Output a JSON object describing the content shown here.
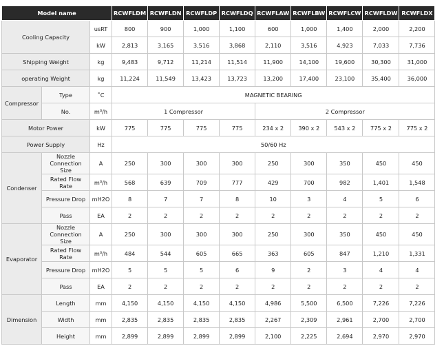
{
  "header": {
    "label": "Model name",
    "models": [
      "RCWFLDM",
      "RCWFLDN",
      "RCWFLDP",
      "RCWFLDQ",
      "RCWFLAW",
      "RCWFLBW",
      "RCWFLCW",
      "RCWFLDW",
      "RCWFLDX"
    ]
  },
  "cooling": {
    "label": "Cooling Capacity",
    "usrt_unit": "usRT",
    "usrt": [
      "800",
      "900",
      "1,000",
      "1,100",
      "600",
      "1,000",
      "1,400",
      "2,000",
      "2,200"
    ],
    "kw_unit": "kW",
    "kw": [
      "2,813",
      "3,165",
      "3,516",
      "3,868",
      "2,110",
      "3,516",
      "4,923",
      "7,033",
      "7,736"
    ]
  },
  "shipping": {
    "label": "Shipping Weight",
    "unit": "kg",
    "values": [
      "9,483",
      "9,712",
      "11,214",
      "11,514",
      "11,900",
      "14,100",
      "19,600",
      "30,300",
      "31,000"
    ]
  },
  "operating": {
    "label": "operating Weight",
    "unit": "kg",
    "values": [
      "11,224",
      "11,549",
      "13,423",
      "13,723",
      "13,200",
      "17,400",
      "23,100",
      "35,400",
      "36,000"
    ]
  },
  "compressor": {
    "label": "Compressor",
    "type_label": "Type",
    "type_unit": "˚C",
    "type_value": "MAGNETIC BEARING",
    "no_label": "No.",
    "no_unit": "m³/h",
    "no_value_1": "1 Compressor",
    "no_value_2": "2 Compressor"
  },
  "motor": {
    "label": "Motor Power",
    "unit": "kW",
    "values": [
      "775",
      "775",
      "775",
      "775",
      "234 x 2",
      "390 x 2",
      "543 x 2",
      "775 x 2",
      "775 x 2"
    ]
  },
  "power": {
    "label": "Power Supply",
    "unit": "Hz",
    "value": "50/60 Hz"
  },
  "condenser": {
    "label": "Condenser",
    "nozzle_label": "Nozzle Connection Size",
    "nozzle_unit": "A",
    "nozzle": [
      "250",
      "300",
      "300",
      "300",
      "250",
      "300",
      "350",
      "450",
      "450"
    ],
    "flow_label": "Rated Flow Rate",
    "flow_unit": "m³/h",
    "flow": [
      "568",
      "639",
      "709",
      "777",
      "429",
      "700",
      "982",
      "1,401",
      "1,548"
    ],
    "pd_label": "Pressure Drop",
    "pd_unit": "mH2O",
    "pd": [
      "8",
      "7",
      "7",
      "8",
      "10",
      "3",
      "4",
      "5",
      "6"
    ],
    "pass_label": "Pass",
    "pass_unit": "EA",
    "pass": [
      "2",
      "2",
      "2",
      "2",
      "2",
      "2",
      "2",
      "2",
      "2"
    ]
  },
  "evaporator": {
    "label": "Evaporator",
    "nozzle_label": "Nozzle Connection Size",
    "nozzle_unit": "A",
    "nozzle": [
      "250",
      "300",
      "300",
      "300",
      "250",
      "300",
      "350",
      "450",
      "450"
    ],
    "flow_label": "Rated Flow Rate",
    "flow_unit": "m³/h",
    "flow": [
      "484",
      "544",
      "605",
      "665",
      "363",
      "605",
      "847",
      "1,210",
      "1,331"
    ],
    "pd_label": "Pressure Drop",
    "pd_unit": "mH2O",
    "pd": [
      "5",
      "5",
      "5",
      "6",
      "9",
      "2",
      "3",
      "4",
      "4"
    ],
    "pass_label": "Pass",
    "pass_unit": "EA",
    "pass": [
      "2",
      "2",
      "2",
      "2",
      "2",
      "2",
      "2",
      "2",
      "2"
    ]
  },
  "dimension": {
    "label": "Dimension",
    "length_label": "Length",
    "length_unit": "mm",
    "length": [
      "4,150",
      "4,150",
      "4,150",
      "4,150",
      "4,986",
      "5,500",
      "6,500",
      "7,226",
      "7,226"
    ],
    "width_label": "Width",
    "width_unit": "mm",
    "width": [
      "2,835",
      "2,835",
      "2,835",
      "2,835",
      "2,267",
      "2,309",
      "2,961",
      "2,700",
      "2,700"
    ],
    "height_label": "Height",
    "height_unit": "mm",
    "height": [
      "2,899",
      "2,899",
      "2,899",
      "2,899",
      "2,100",
      "2,225",
      "2,694",
      "2,970",
      "2,970"
    ]
  }
}
